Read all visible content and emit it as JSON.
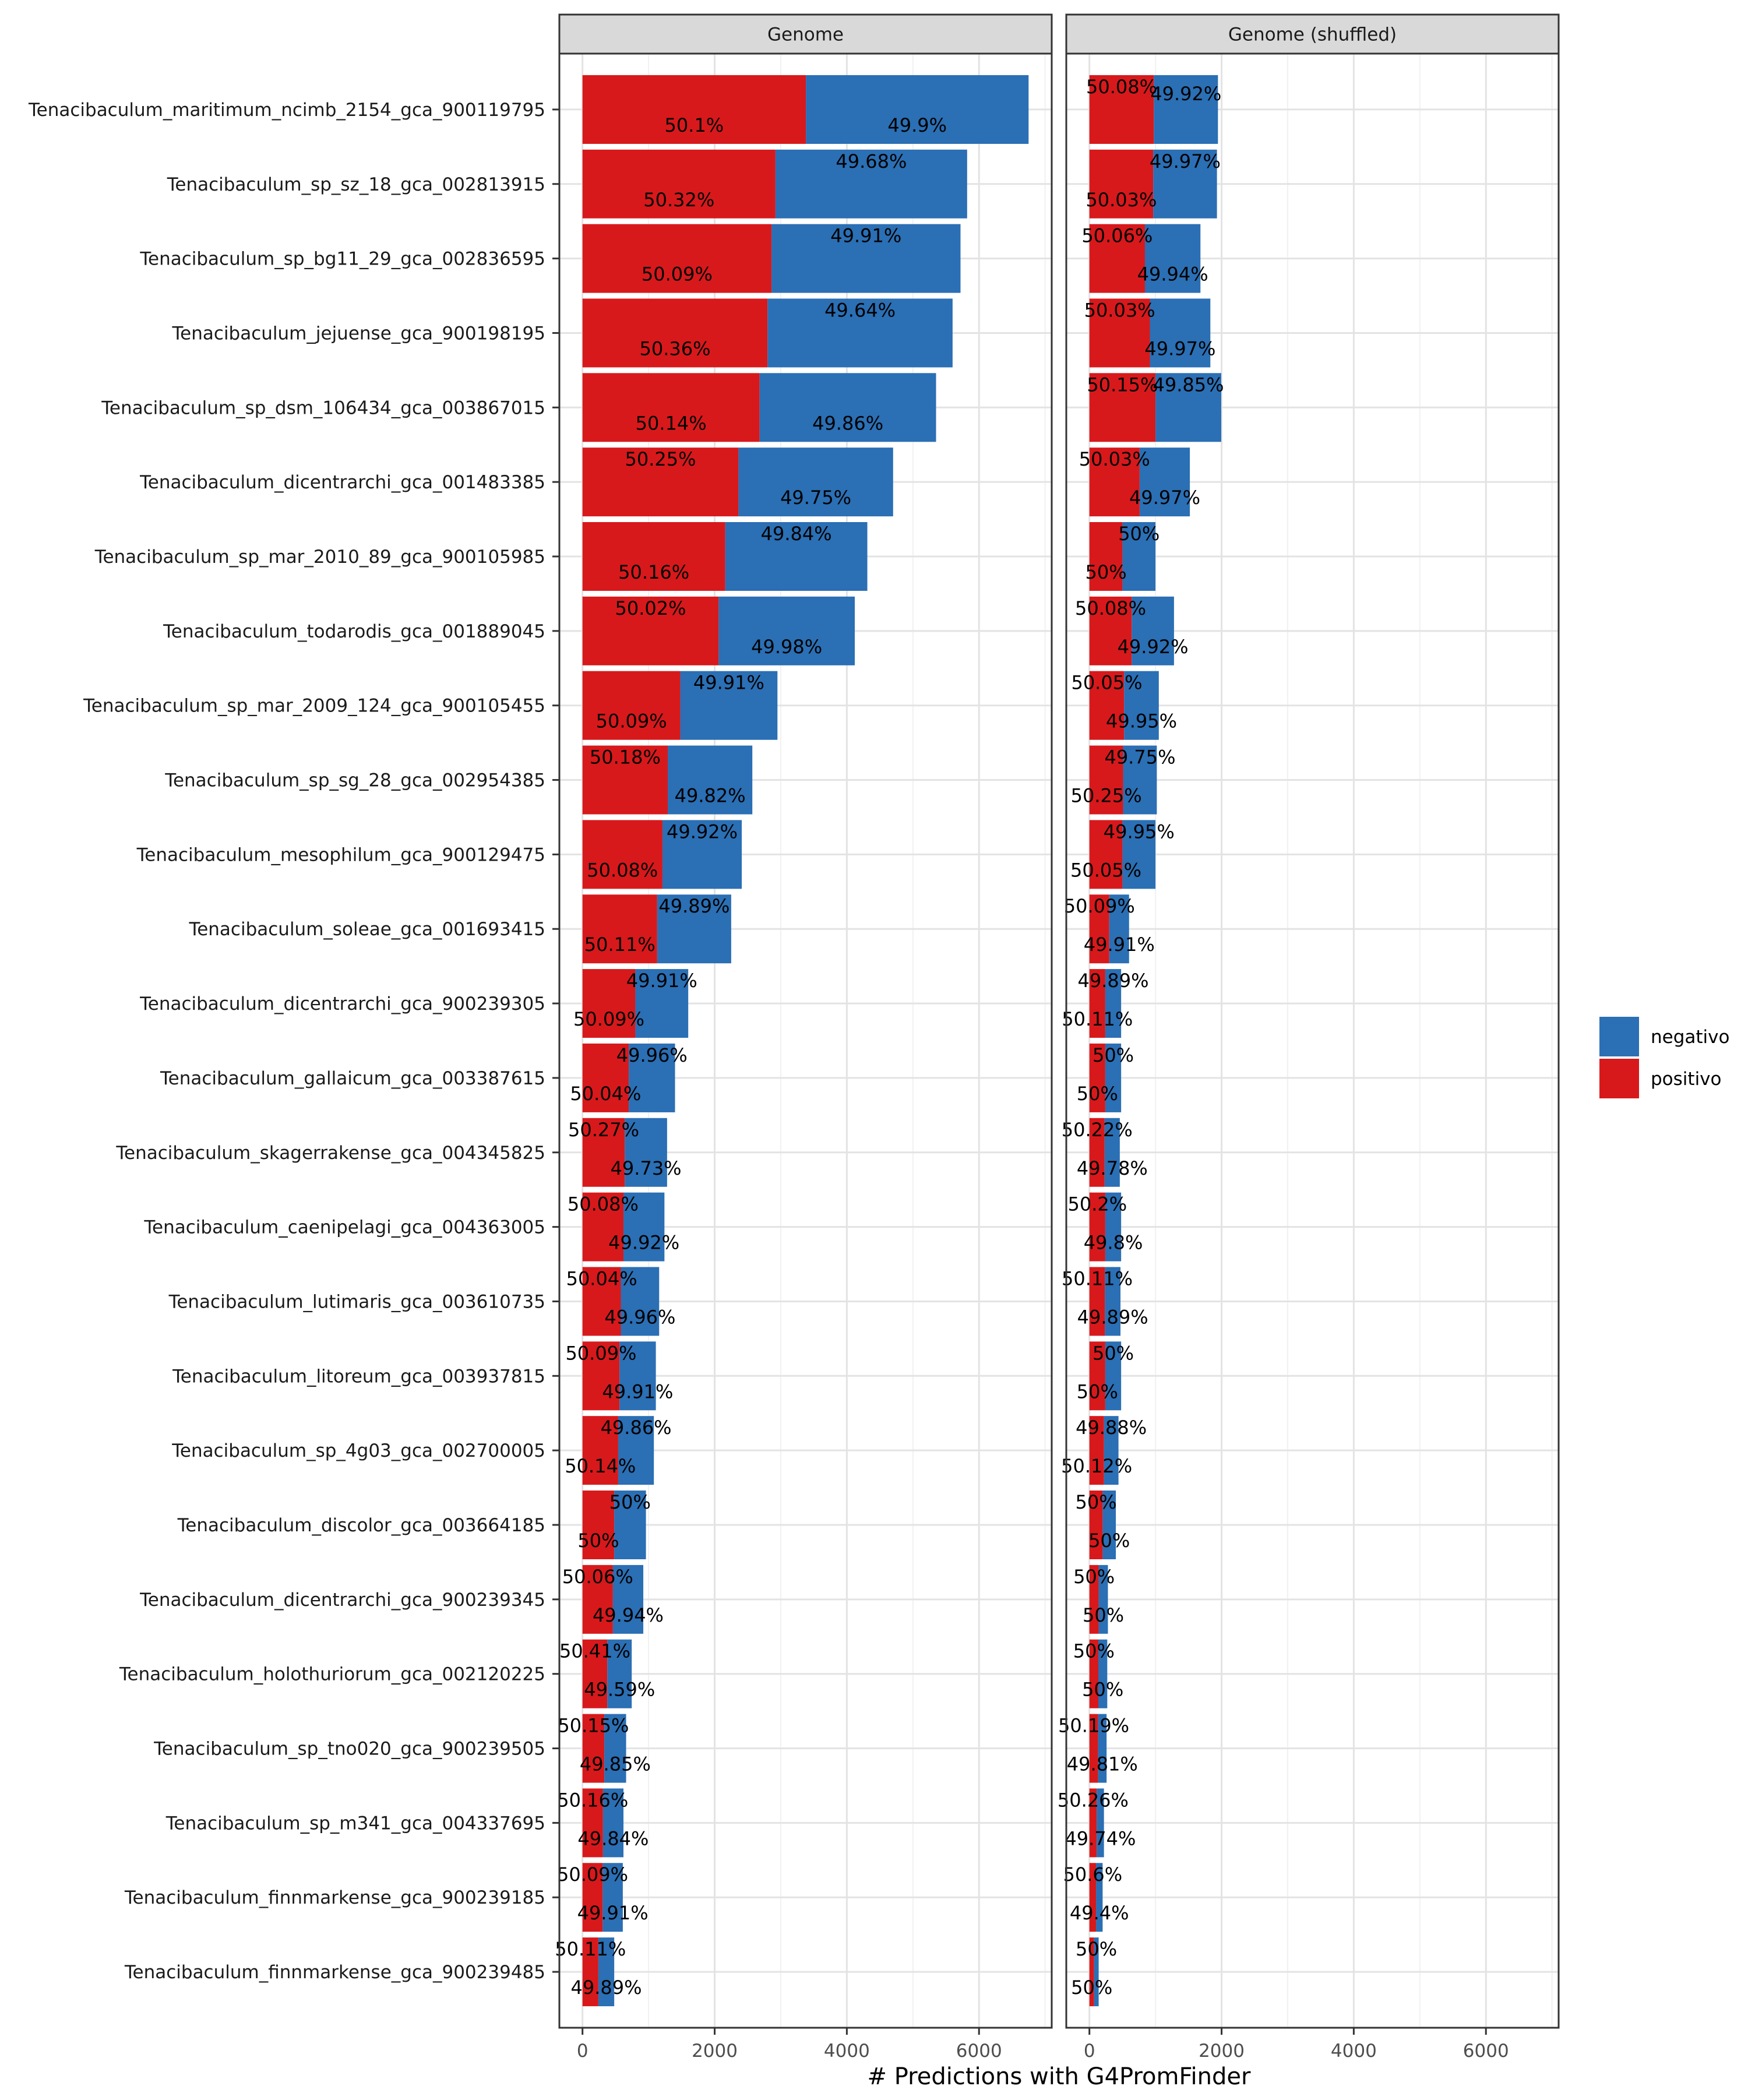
{
  "chart_data": {
    "type": "bar",
    "stacked": true,
    "orientation": "horizontal",
    "xlabel": "# Predictions with G4PromFinder",
    "ylabel": "",
    "xlim": [
      0,
      7100
    ],
    "xticks": [
      0,
      2000,
      4000,
      6000
    ],
    "grid": true,
    "legend": {
      "position": "right",
      "entries": [
        "negativo",
        "positivo"
      ]
    },
    "colors": {
      "positivo": "#d7191c",
      "negativo": "#2b6fb4",
      "strip": "#d9d9d9"
    },
    "categories": [
      "Tenacibaculum_maritimum_ncimb_2154_gca_900119795",
      "Tenacibaculum_sp_sz_18_gca_002813915",
      "Tenacibaculum_sp_bg11_29_gca_002836595",
      "Tenacibaculum_jejuense_gca_900198195",
      "Tenacibaculum_sp_dsm_106434_gca_003867015",
      "Tenacibaculum_dicentrarchi_gca_001483385",
      "Tenacibaculum_sp_mar_2010_89_gca_900105985",
      "Tenacibaculum_todarodis_gca_001889045",
      "Tenacibaculum_sp_mar_2009_124_gca_900105455",
      "Tenacibaculum_sp_sg_28_gca_002954385",
      "Tenacibaculum_mesophilum_gca_900129475",
      "Tenacibaculum_soleae_gca_001693415",
      "Tenacibaculum_dicentrarchi_gca_900239305",
      "Tenacibaculum_gallaicum_gca_003387615",
      "Tenacibaculum_skagerrakense_gca_004345825",
      "Tenacibaculum_caenipelagi_gca_004363005",
      "Tenacibaculum_lutimaris_gca_003610735",
      "Tenacibaculum_litoreum_gca_003937815",
      "Tenacibaculum_sp_4g03_gca_002700005",
      "Tenacibaculum_discolor_gca_003664185",
      "Tenacibaculum_dicentrarchi_gca_900239345",
      "Tenacibaculum_holothuriorum_gca_002120225",
      "Tenacibaculum_sp_tno020_gca_900239505",
      "Tenacibaculum_sp_m341_gca_004337695",
      "Tenacibaculum_finnmarkense_gca_900239185",
      "Tenacibaculum_finnmarkense_gca_900239485"
    ],
    "panels": [
      {
        "title": "Genome",
        "positivo": [
          3380,
          2920,
          2860,
          2800,
          2680,
          2360,
          2160,
          2060,
          1480,
          1290,
          1210,
          1130,
          800,
          700,
          640,
          620,
          580,
          560,
          540,
          480,
          460,
          375,
          330,
          310,
          305,
          240
        ],
        "negativo": [
          3370,
          2900,
          2860,
          2800,
          2670,
          2340,
          2150,
          2060,
          1470,
          1280,
          1200,
          1120,
          800,
          700,
          640,
          620,
          580,
          550,
          540,
          480,
          460,
          370,
          330,
          310,
          305,
          240
        ],
        "positivo_pct": [
          "50.1%",
          "50.32%",
          "50.09%",
          "50.36%",
          "50.14%",
          "50.25%",
          "50.16%",
          "50.02%",
          "50.09%",
          "50.18%",
          "50.08%",
          "50.11%",
          "50.09%",
          "50.04%",
          "50.27%",
          "50.08%",
          "50.04%",
          "50.09%",
          "50.14%",
          "50%",
          "50.06%",
          "50.41%",
          "50.15%",
          "50.16%",
          "50.09%",
          "50.11%"
        ],
        "negativo_pct": [
          "49.9%",
          "49.68%",
          "49.91%",
          "49.64%",
          "49.86%",
          "49.75%",
          "49.84%",
          "49.98%",
          "49.91%",
          "49.82%",
          "49.92%",
          "49.89%",
          "49.91%",
          "49.96%",
          "49.73%",
          "49.92%",
          "49.96%",
          "49.91%",
          "49.86%",
          "50%",
          "49.94%",
          "49.59%",
          "49.85%",
          "49.84%",
          "49.91%",
          "49.89%"
        ]
      },
      {
        "title": "Genome (shuffled)",
        "positivo": [
          975,
          965,
          840,
          915,
          1000,
          760,
          500,
          640,
          525,
          510,
          500,
          300,
          240,
          240,
          230,
          240,
          235,
          240,
          220,
          200,
          140,
          135,
          130,
          110,
          100,
          70
        ],
        "negativo": [
          970,
          965,
          840,
          915,
          995,
          760,
          500,
          640,
          525,
          510,
          500,
          300,
          240,
          240,
          230,
          240,
          235,
          240,
          220,
          200,
          140,
          135,
          130,
          110,
          100,
          70
        ],
        "positivo_pct": [
          "50.08%",
          "50.03%",
          "50.06%",
          "50.03%",
          "50.15%",
          "50.03%",
          "50%",
          "50.08%",
          "50.05%",
          "50.25%",
          "50.05%",
          "50.09%",
          "50.11%",
          "50%",
          "50.22%",
          "50.2%",
          "50.11%",
          "50%",
          "50.12%",
          "50%",
          "50%",
          "50%",
          "50.19%",
          "50.26%",
          "50.6%",
          "50%"
        ],
        "negativo_pct": [
          "49.92%",
          "49.97%",
          "49.94%",
          "49.97%",
          "49.85%",
          "49.97%",
          "50%",
          "49.92%",
          "49.95%",
          "49.75%",
          "49.95%",
          "49.91%",
          "49.89%",
          "50%",
          "49.78%",
          "49.8%",
          "49.89%",
          "50%",
          "49.88%",
          "50%",
          "50%",
          "50%",
          "49.81%",
          "49.74%",
          "49.4%",
          "50%"
        ]
      }
    ]
  }
}
